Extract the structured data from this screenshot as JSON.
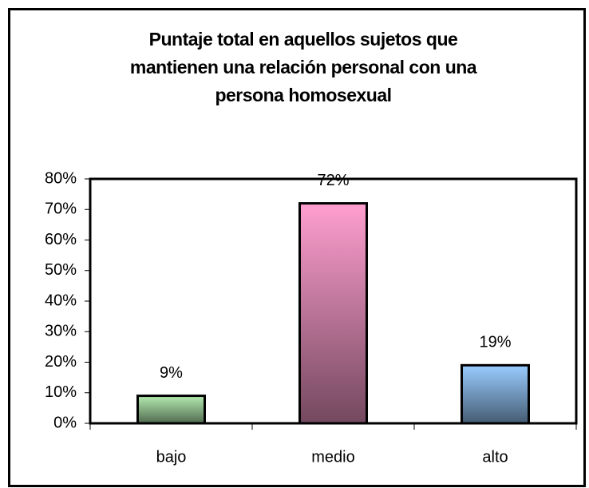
{
  "chart_data": {
    "type": "bar",
    "title": "Puntaje total en aquellos sujetos que mantienen una relación personal con una persona homosexual",
    "categories": [
      "bajo",
      "medio",
      "alto"
    ],
    "values": [
      9,
      72,
      19
    ],
    "value_labels": [
      "9%",
      "72%",
      "19%"
    ],
    "colors": [
      "#b4ecb0",
      "#ff9fd0",
      "#99ccff"
    ],
    "ylim": [
      0,
      80
    ],
    "yticks": [
      {
        "value": 0,
        "label": "0%"
      },
      {
        "value": 10,
        "label": "10%"
      },
      {
        "value": 20,
        "label": "20%"
      },
      {
        "value": 30,
        "label": "30%"
      },
      {
        "value": 40,
        "label": "40%"
      },
      {
        "value": 50,
        "label": "50%"
      },
      {
        "value": 60,
        "label": "60%"
      },
      {
        "value": 70,
        "label": "70%"
      },
      {
        "value": 80,
        "label": "80%"
      }
    ],
    "grid": false
  }
}
